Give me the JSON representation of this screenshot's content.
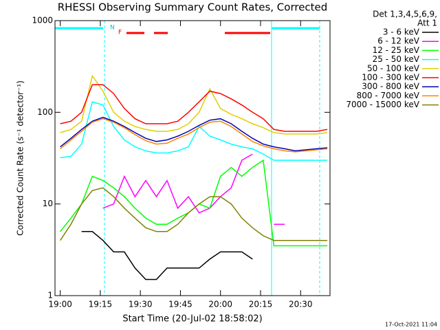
{
  "chart_data": {
    "type": "line",
    "title": "RHESSI Observing Summary Count Rates, Corrected",
    "x_label": "Start Time (20-Jul-02 18:58:02)",
    "y_label": "Corrected Count Rate (s⁻¹ detector⁻¹)",
    "legend_header": [
      "Det 1,3,4,5,6,9,",
      "Att 1"
    ],
    "footer": "17-Oct-2021 11:04",
    "annotations": [
      "N",
      "F"
    ],
    "log_y": true,
    "background": "#ffffff",
    "xlim": [
      "18:58:02",
      "20:41"
    ],
    "xticks": [
      "19:00",
      "19:15",
      "19:30",
      "19:45",
      "20:00",
      "20:15",
      "20:30"
    ],
    "ylim": [
      1,
      1000
    ],
    "yticks": [
      1,
      10,
      100,
      1000
    ],
    "x": [
      "19:00",
      "19:04",
      "19:08",
      "19:12",
      "19:16",
      "19:20",
      "19:24",
      "19:28",
      "19:32",
      "19:36",
      "19:40",
      "19:44",
      "19:48",
      "19:52",
      "19:56",
      "20:00",
      "20:04",
      "20:08",
      "20:12",
      "20:16",
      "20:20",
      "20:24",
      "20:28",
      "20:32",
      "20:36",
      "20:40"
    ],
    "series": [
      {
        "name": "3 - 6 keV",
        "color": "#000000",
        "values": [
          null,
          null,
          5,
          5,
          4,
          3,
          3,
          2,
          1.5,
          1.5,
          2,
          2,
          2,
          2,
          2.5,
          3,
          3,
          3,
          2.5,
          null,
          null,
          null,
          null,
          null,
          null,
          null
        ]
      },
      {
        "name": "6 - 12 keV",
        "color": "#ff00ff",
        "values": [
          null,
          null,
          null,
          null,
          9,
          10,
          20,
          12,
          18,
          12,
          18,
          9,
          12,
          8,
          9,
          12,
          15,
          30,
          35,
          null,
          6,
          6,
          null,
          null,
          null,
          null
        ]
      },
      {
        "name": "12 - 25 keV",
        "color": "#00ff00",
        "values": [
          5,
          7,
          10,
          20,
          18,
          15,
          12,
          9,
          7,
          6,
          6,
          7,
          8,
          10,
          9,
          20,
          25,
          20,
          25,
          30,
          3.5,
          3.5,
          3.5,
          3.5,
          3.5,
          3.5
        ]
      },
      {
        "name": "25 - 50 keV",
        "color": "#00ffff",
        "values": [
          32,
          33,
          45,
          130,
          120,
          70,
          50,
          42,
          38,
          36,
          36,
          38,
          42,
          70,
          55,
          50,
          45,
          42,
          40,
          35,
          30,
          30,
          30,
          30,
          30,
          30
        ]
      },
      {
        "name": "50 - 100 keV",
        "color": "#e0d000",
        "values": [
          60,
          65,
          80,
          250,
          170,
          100,
          80,
          70,
          65,
          62,
          62,
          65,
          75,
          100,
          180,
          110,
          95,
          85,
          75,
          68,
          60,
          58,
          58,
          58,
          58,
          60
        ]
      },
      {
        "name": "100 - 300 keV",
        "color": "#ff0000",
        "values": [
          75,
          80,
          100,
          200,
          200,
          160,
          110,
          85,
          75,
          75,
          75,
          80,
          100,
          130,
          170,
          160,
          140,
          120,
          100,
          85,
          65,
          62,
          62,
          62,
          62,
          65
        ]
      },
      {
        "name": "300 - 800 keV",
        "color": "#0000b0",
        "values": [
          42,
          52,
          65,
          80,
          88,
          80,
          70,
          60,
          52,
          48,
          50,
          55,
          62,
          72,
          82,
          85,
          75,
          62,
          52,
          45,
          42,
          40,
          38,
          39,
          40,
          41
        ]
      },
      {
        "name": "800 - 7000 keV",
        "color": "#ff8000",
        "values": [
          40,
          50,
          62,
          78,
          85,
          78,
          68,
          57,
          49,
          45,
          46,
          52,
          58,
          68,
          78,
          80,
          70,
          58,
          48,
          43,
          40,
          38,
          37,
          38,
          39,
          40
        ]
      },
      {
        "name": "7000 - 15000 keV",
        "color": "#808000",
        "values": [
          4,
          6,
          10,
          14,
          15,
          12,
          9,
          7,
          5.5,
          5,
          5,
          6,
          8,
          10,
          12,
          12,
          10,
          7,
          5.5,
          4.5,
          4,
          4,
          4,
          4,
          4,
          4
        ]
      }
    ]
  }
}
